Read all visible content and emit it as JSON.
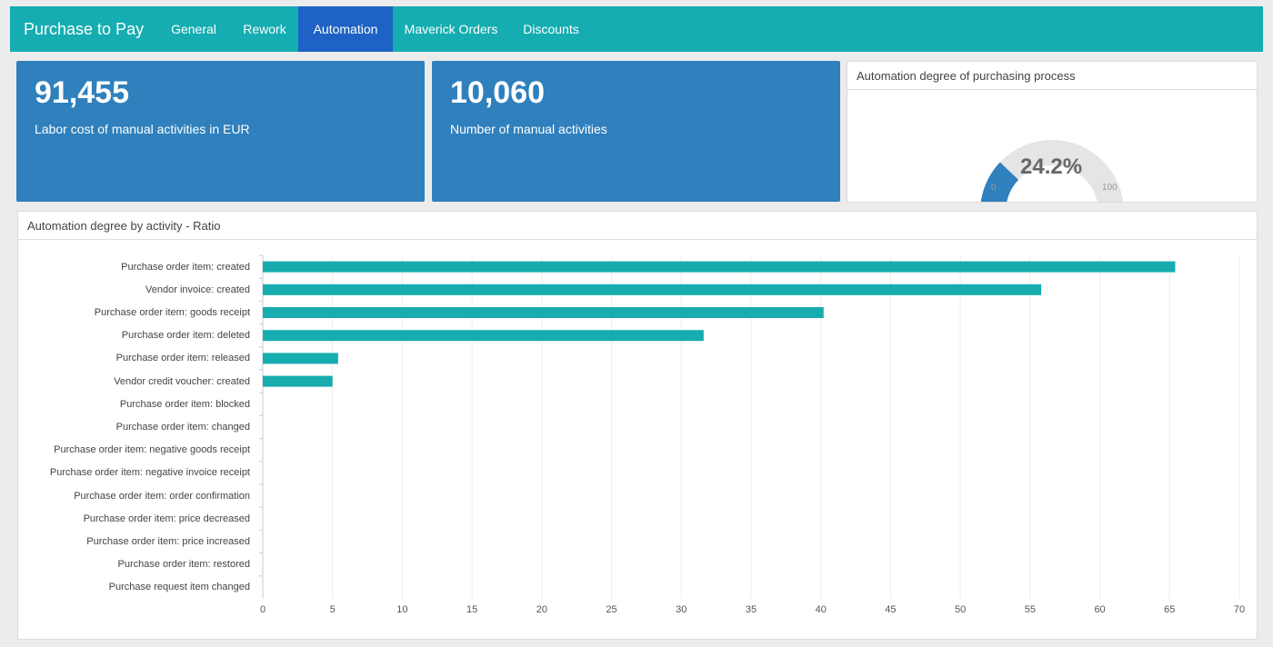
{
  "navbar": {
    "brand": "Purchase to Pay",
    "tabs": [
      {
        "label": "General",
        "active": false
      },
      {
        "label": "Rework",
        "active": false
      },
      {
        "label": "Automation",
        "active": true
      },
      {
        "label": "Maverick Orders",
        "active": false
      },
      {
        "label": "Discounts",
        "active": false
      }
    ]
  },
  "kpis": [
    {
      "value": "91,455",
      "label": "Labor cost of manual activities in EUR"
    },
    {
      "value": "10,060",
      "label": "Number of manual activities"
    }
  ],
  "gauge": {
    "title": "Automation degree of purchasing process",
    "value": 24.2,
    "display": "24.2%",
    "min_label": "0",
    "max_label": "100",
    "fill_color": "#2f80bd",
    "track_color": "#e5e5e5"
  },
  "bar_panel": {
    "title": "Automation degree by activity - Ratio"
  },
  "chart_data": {
    "type": "bar",
    "orientation": "horizontal",
    "categories": [
      "Purchase order item: created",
      "Vendor invoice: created",
      "Purchase order item: goods receipt",
      "Purchase order item: deleted",
      "Purchase order item: released",
      "Vendor credit voucher: created",
      "Purchase order item: blocked",
      "Purchase order item: changed",
      "Purchase order item: negative goods receipt",
      "Purchase order item: negative invoice receipt",
      "Purchase order item: order confirmation",
      "Purchase order item: price decreased",
      "Purchase order item: price increased",
      "Purchase order item: restored",
      "Purchase request item changed"
    ],
    "values": [
      65.4,
      55.8,
      40.2,
      31.6,
      5.4,
      5.0,
      0,
      0,
      0,
      0,
      0,
      0,
      0,
      0,
      0
    ],
    "xlim": [
      0,
      70
    ],
    "xticks": [
      "0",
      "5",
      "10",
      "15",
      "20",
      "25",
      "30",
      "35",
      "40",
      "45",
      "50",
      "55",
      "60",
      "65",
      "70"
    ],
    "grid": true,
    "bar_color": "#17acae",
    "title": "Automation degree by activity - Ratio"
  }
}
